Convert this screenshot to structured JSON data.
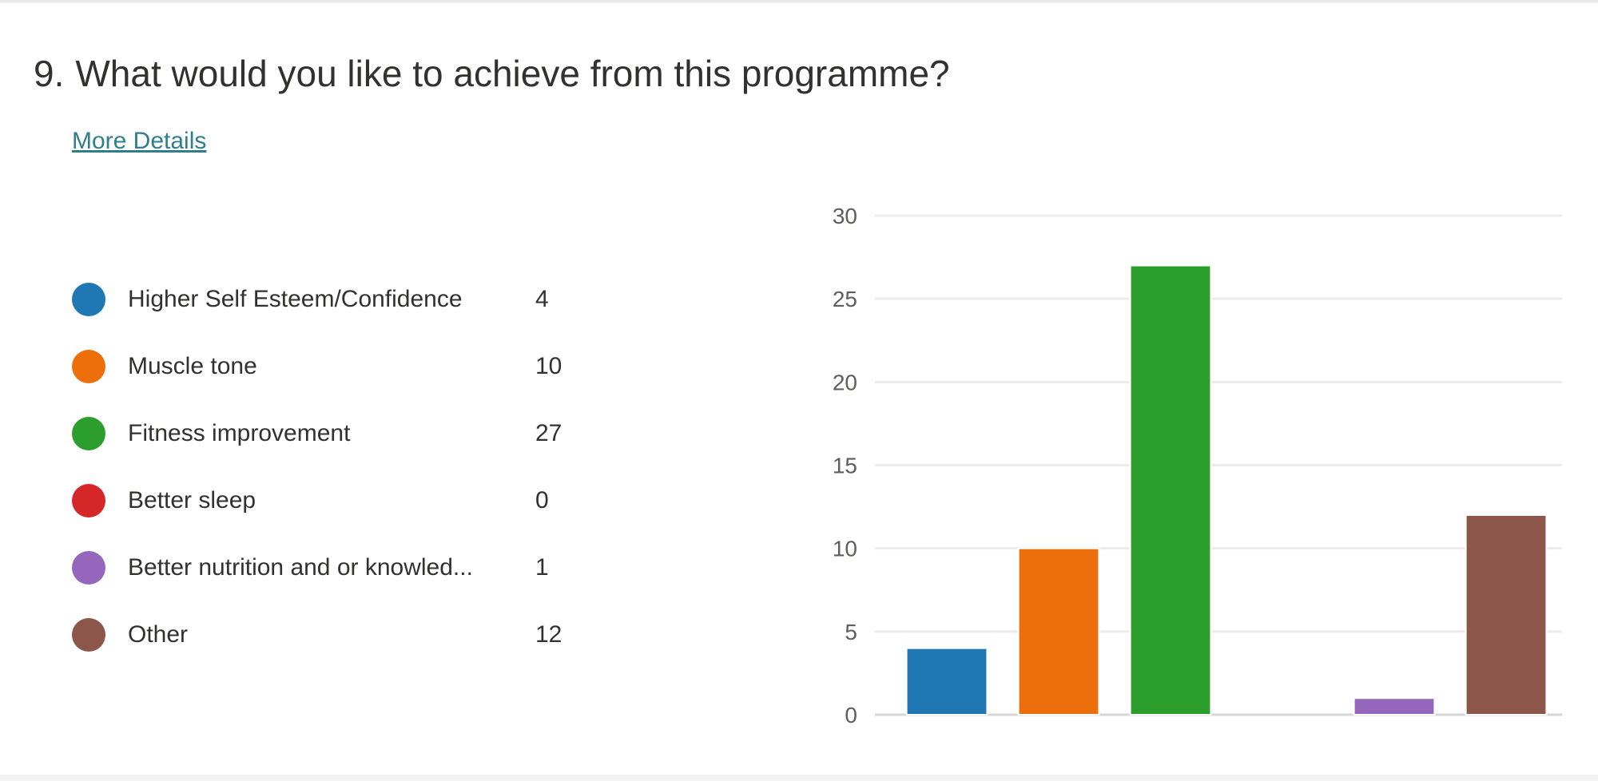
{
  "question": {
    "number": "9.",
    "text": "What would you like to achieve from this programme?"
  },
  "more_details_label": "More Details",
  "legend": [
    {
      "label": "Higher Self Esteem/Confidence",
      "count": "4",
      "color": "#1f77b4"
    },
    {
      "label": "Muscle tone",
      "count": "10",
      "color": "#ec6f0b"
    },
    {
      "label": "Fitness improvement",
      "count": "27",
      "color": "#2b9e2b"
    },
    {
      "label": "Better sleep",
      "count": "0",
      "color": "#d62728"
    },
    {
      "label": "Better nutrition and or knowled...",
      "count": "1",
      "color": "#9467bd"
    },
    {
      "label": "Other",
      "count": "12",
      "color": "#8c564b"
    }
  ],
  "chart_data": {
    "type": "bar",
    "categories": [
      "Higher Self Esteem/Confidence",
      "Muscle tone",
      "Fitness improvement",
      "Better sleep",
      "Better nutrition and or knowled...",
      "Other"
    ],
    "values": [
      4,
      10,
      27,
      0,
      1,
      12
    ],
    "colors": [
      "#1f77b4",
      "#ec6f0b",
      "#2b9e2b",
      "#d62728",
      "#9467bd",
      "#8c564b"
    ],
    "ylim": [
      0,
      30
    ],
    "yticks": [
      0,
      5,
      10,
      15,
      20,
      25,
      30
    ],
    "grid": true,
    "legend_placement": "left"
  }
}
